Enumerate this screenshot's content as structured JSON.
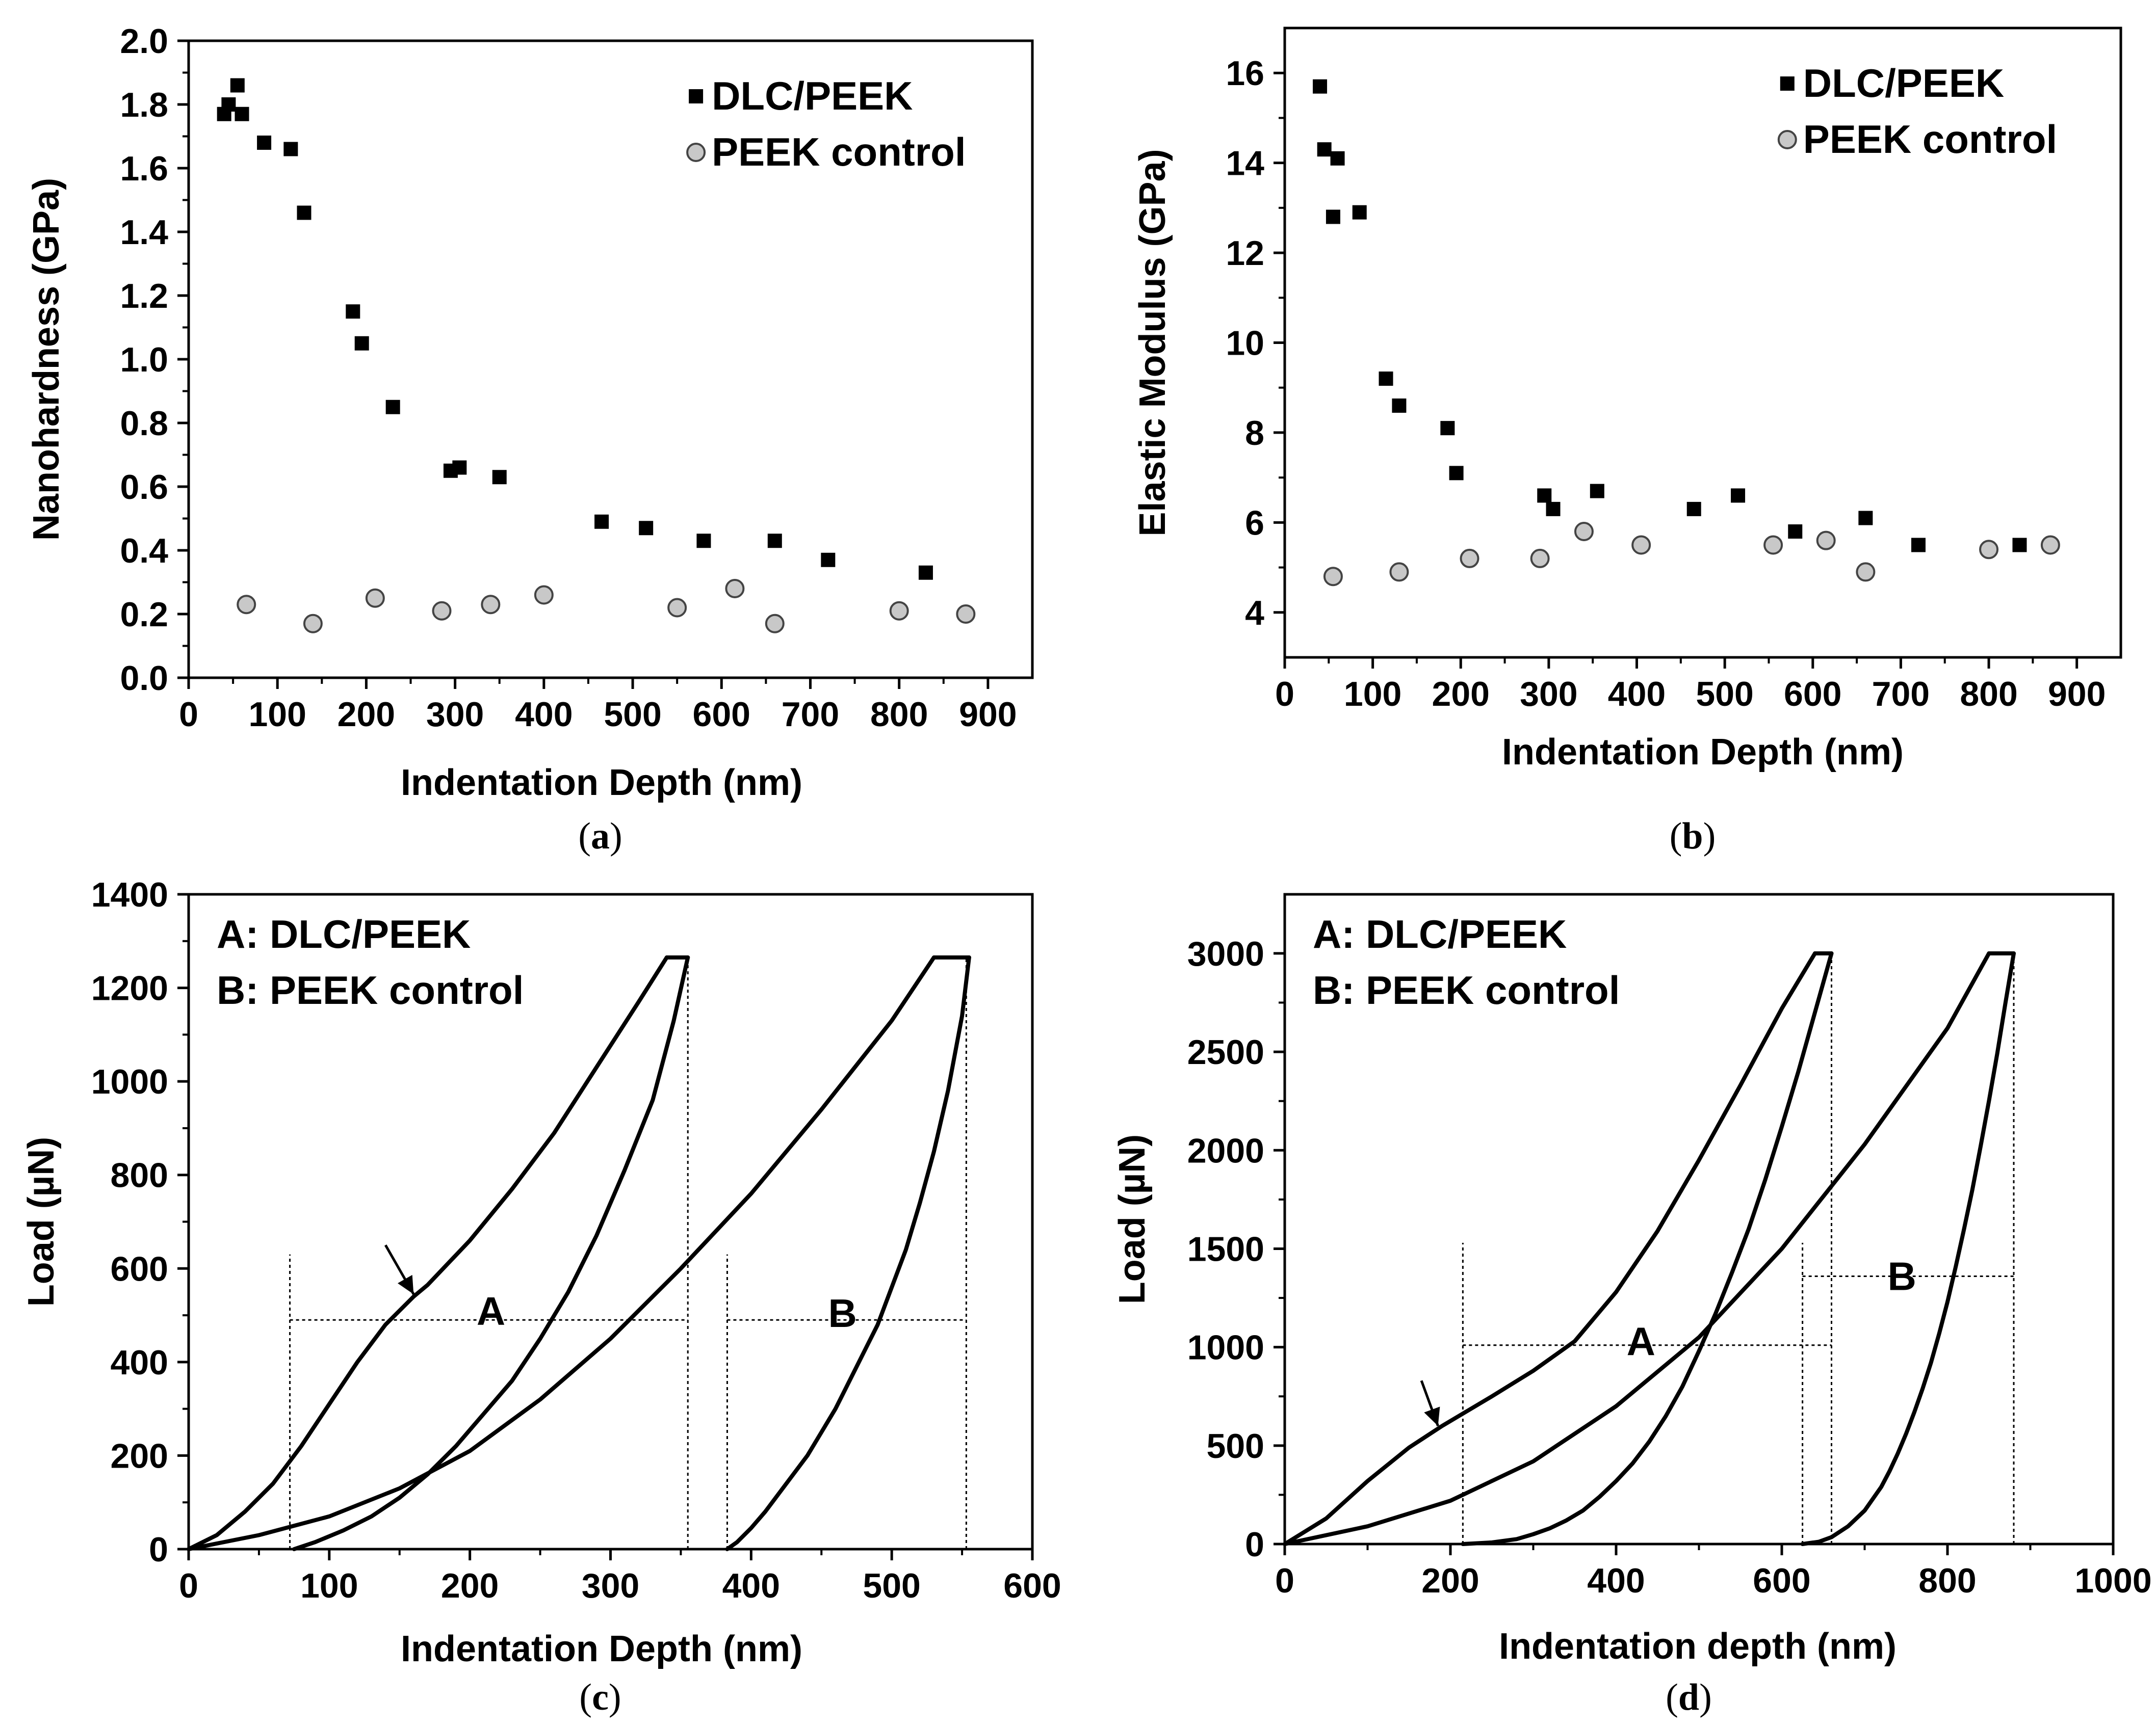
{
  "chart_data": [
    {
      "type": "scatter",
      "panel": "a",
      "caption_open": "(",
      "caption_letter": "a",
      "caption_close": ")",
      "xlabel": "Indentation Depth (nm)",
      "ylabel": "Nanohardness (GPa)",
      "xlim": [
        0,
        950
      ],
      "ylim": [
        0,
        2.0
      ],
      "xticks": [
        0,
        100,
        200,
        300,
        400,
        500,
        600,
        700,
        800,
        900
      ],
      "yticks": [
        0.0,
        0.2,
        0.4,
        0.6,
        0.8,
        1.0,
        1.2,
        1.4,
        1.6,
        1.8,
        2.0
      ],
      "ytick_labels": [
        "0.0",
        "0.2",
        "0.4",
        "0.6",
        "0.8",
        "1.0",
        "1.2",
        "1.4",
        "1.6",
        "1.8",
        "2.0"
      ],
      "legend": [
        "DLC/PEEK",
        "PEEK control"
      ],
      "series": [
        {
          "name": "DLC/PEEK",
          "marker": "square",
          "x": [
            40,
            45,
            55,
            60,
            85,
            115,
            130,
            185,
            195,
            230,
            295,
            305,
            350,
            465,
            515,
            580,
            660,
            720,
            830
          ],
          "y": [
            1.77,
            1.8,
            1.86,
            1.77,
            1.68,
            1.66,
            1.46,
            1.15,
            1.05,
            0.85,
            0.65,
            0.66,
            0.63,
            0.49,
            0.47,
            0.43,
            0.43,
            0.37,
            0.33
          ]
        },
        {
          "name": "PEEK control",
          "marker": "circle",
          "x": [
            65,
            140,
            210,
            285,
            340,
            400,
            550,
            615,
            660,
            800,
            875
          ],
          "y": [
            0.23,
            0.17,
            0.25,
            0.21,
            0.23,
            0.26,
            0.22,
            0.28,
            0.17,
            0.21,
            0.2
          ]
        }
      ]
    },
    {
      "type": "scatter",
      "panel": "b",
      "caption_open": "(",
      "caption_letter": "b",
      "caption_close": ")",
      "xlabel": "Indentation Depth (nm)",
      "ylabel": "Elastic Modulus (GPa)",
      "xlim": [
        0,
        950
      ],
      "ylim": [
        3,
        17
      ],
      "xticks": [
        0,
        100,
        200,
        300,
        400,
        500,
        600,
        700,
        800,
        900
      ],
      "yticks": [
        4,
        6,
        8,
        10,
        12,
        14,
        16
      ],
      "ytick_labels": [
        "4",
        "6",
        "8",
        "10",
        "12",
        "14",
        "16"
      ],
      "legend": [
        "DLC/PEEK",
        "PEEK control"
      ],
      "series": [
        {
          "name": "DLC/PEEK",
          "marker": "square",
          "x": [
            40,
            45,
            55,
            60,
            85,
            115,
            130,
            185,
            195,
            295,
            305,
            355,
            465,
            515,
            580,
            660,
            720,
            835
          ],
          "y": [
            15.7,
            14.3,
            12.8,
            14.1,
            12.9,
            9.2,
            8.6,
            8.1,
            7.1,
            6.6,
            6.3,
            6.7,
            6.3,
            6.6,
            5.8,
            6.1,
            5.5,
            5.5
          ]
        },
        {
          "name": "PEEK control",
          "marker": "circle",
          "x": [
            55,
            130,
            210,
            290,
            340,
            405,
            555,
            615,
            660,
            800,
            870
          ],
          "y": [
            4.8,
            4.9,
            5.2,
            5.2,
            5.8,
            5.5,
            5.5,
            5.6,
            4.9,
            5.4,
            5.5
          ]
        }
      ]
    },
    {
      "type": "line",
      "panel": "c",
      "caption_open": "(",
      "caption_letter": "c",
      "caption_close": ")",
      "xlabel": "Indentation Depth (nm)",
      "ylabel": "Load (µN)",
      "xlim": [
        0,
        600
      ],
      "ylim": [
        0,
        1400
      ],
      "xticks": [
        0,
        100,
        200,
        300,
        400,
        500,
        600
      ],
      "yticks": [
        0,
        200,
        400,
        600,
        800,
        1000,
        1200,
        1400
      ],
      "legend_lines": [
        "A: DLC/PEEK",
        "B: PEEK control"
      ],
      "labels": [
        "A",
        "B"
      ],
      "series": [
        {
          "name": "A loading",
          "x": [
            0,
            20,
            40,
            60,
            80,
            100,
            120,
            140,
            160,
            170,
            200,
            230,
            260,
            290,
            320,
            340
          ],
          "y": [
            0,
            30,
            80,
            140,
            220,
            310,
            400,
            480,
            540,
            565,
            660,
            770,
            890,
            1030,
            1170,
            1265
          ]
        },
        {
          "name": "A hold",
          "x": [
            340,
            355
          ],
          "y": [
            1265,
            1265
          ]
        },
        {
          "name": "A unloading",
          "x": [
            355,
            345,
            330,
            310,
            290,
            270,
            250,
            230,
            210,
            190,
            170,
            150,
            130,
            110,
            90,
            75
          ],
          "y": [
            1265,
            1130,
            960,
            810,
            670,
            550,
            450,
            360,
            290,
            220,
            160,
            110,
            70,
            40,
            15,
            0
          ]
        },
        {
          "name": "B loading",
          "x": [
            0,
            50,
            100,
            150,
            200,
            250,
            300,
            350,
            400,
            450,
            500,
            530
          ],
          "y": [
            0,
            30,
            70,
            130,
            210,
            320,
            450,
            600,
            760,
            940,
            1130,
            1265
          ]
        },
        {
          "name": "B hold",
          "x": [
            530,
            555
          ],
          "y": [
            1265,
            1265
          ]
        },
        {
          "name": "B unloading",
          "x": [
            555,
            550,
            540,
            530,
            520,
            510,
            500,
            490,
            480,
            470,
            460,
            450,
            440,
            430,
            420,
            410,
            400,
            390,
            383
          ],
          "y": [
            1265,
            1140,
            980,
            850,
            740,
            640,
            560,
            480,
            420,
            360,
            300,
            250,
            200,
            160,
            120,
            80,
            45,
            15,
            0
          ]
        }
      ],
      "guides": [
        {
          "name": "A lower bound",
          "type": "vline",
          "x": 72,
          "y0": 0,
          "y1": 630
        },
        {
          "name": "A upper bound",
          "type": "vline",
          "x": 355,
          "y0": 0,
          "y1": 1265
        },
        {
          "name": "A width",
          "type": "hline",
          "y": 490,
          "x0": 72,
          "x1": 355
        },
        {
          "name": "B lower bound",
          "type": "vline",
          "x": 383,
          "y0": 0,
          "y1": 630
        },
        {
          "name": "B upper bound",
          "type": "vline",
          "x": 553,
          "y0": 0,
          "y1": 1265
        },
        {
          "name": "B width",
          "type": "hline",
          "y": 490,
          "x0": 383,
          "x1": 553
        }
      ],
      "label_positions": [
        {
          "text_index": 0,
          "x": 215,
          "y": 480
        },
        {
          "text_index": 1,
          "x": 465,
          "y": 475
        }
      ],
      "arrow": {
        "from": [
          140,
          650
        ],
        "to": [
          160,
          545
        ]
      }
    },
    {
      "type": "line",
      "panel": "d",
      "caption_open": "(",
      "caption_letter": "d",
      "caption_close": ")",
      "xlabel": "Indentation depth (nm)",
      "ylabel": "Load (µN)",
      "xlim": [
        0,
        1000
      ],
      "ylim": [
        0,
        3300
      ],
      "xticks": [
        0,
        200,
        400,
        600,
        800,
        1000
      ],
      "yticks": [
        0,
        500,
        1000,
        1500,
        2000,
        2500,
        3000
      ],
      "legend_lines": [
        "A: DLC/PEEK",
        "B: PEEK control"
      ],
      "labels": [
        "A",
        "B"
      ],
      "series": [
        {
          "name": "A loading",
          "x": [
            0,
            50,
            100,
            150,
            190,
            250,
            300,
            350,
            400,
            450,
            500,
            550,
            600,
            640
          ],
          "y": [
            0,
            130,
            320,
            490,
            600,
            750,
            880,
            1030,
            1280,
            1590,
            1950,
            2330,
            2720,
            3000
          ]
        },
        {
          "name": "A hold",
          "x": [
            640,
            660
          ],
          "y": [
            3000,
            3000
          ]
        },
        {
          "name": "A unloading",
          "x": [
            660,
            640,
            620,
            600,
            580,
            560,
            540,
            520,
            500,
            480,
            460,
            440,
            420,
            400,
            380,
            360,
            340,
            320,
            300,
            280,
            250,
            215
          ],
          "y": [
            3000,
            2700,
            2400,
            2120,
            1850,
            1600,
            1380,
            1170,
            980,
            800,
            650,
            520,
            410,
            320,
            240,
            170,
            120,
            80,
            50,
            25,
            8,
            0
          ]
        },
        {
          "name": "B loading",
          "x": [
            0,
            100,
            200,
            300,
            400,
            500,
            600,
            700,
            800,
            850
          ],
          "y": [
            0,
            90,
            220,
            420,
            700,
            1050,
            1500,
            2030,
            2620,
            3000
          ]
        },
        {
          "name": "B hold",
          "x": [
            850,
            880
          ],
          "y": [
            3000,
            3000
          ]
        },
        {
          "name": "B unloading",
          "x": [
            880,
            870,
            860,
            850,
            840,
            830,
            820,
            810,
            800,
            790,
            780,
            770,
            760,
            750,
            740,
            730,
            720,
            700,
            680,
            660,
            645,
            625
          ],
          "y": [
            3000,
            2750,
            2490,
            2250,
            2020,
            1800,
            1600,
            1410,
            1230,
            1070,
            920,
            790,
            670,
            560,
            460,
            370,
            290,
            170,
            90,
            35,
            12,
            0
          ]
        }
      ],
      "guides": [
        {
          "name": "A lower bound",
          "type": "vline",
          "x": 215,
          "y0": 0,
          "y1": 1530
        },
        {
          "name": "A upper bound",
          "type": "vline",
          "x": 660,
          "y0": 0,
          "y1": 3000
        },
        {
          "name": "A width",
          "type": "hline",
          "y": 1010,
          "x0": 215,
          "x1": 660
        },
        {
          "name": "B lower bound",
          "type": "vline",
          "x": 625,
          "y0": 0,
          "y1": 1530
        },
        {
          "name": "B upper bound",
          "type": "vline",
          "x": 880,
          "y0": 0,
          "y1": 3000
        },
        {
          "name": "B width",
          "type": "hline",
          "y": 1360,
          "x0": 625,
          "x1": 880
        }
      ],
      "label_positions": [
        {
          "text_index": 0,
          "x": 430,
          "y": 960
        },
        {
          "text_index": 1,
          "x": 745,
          "y": 1290
        }
      ],
      "arrow": {
        "from": [
          165,
          830
        ],
        "to": [
          185,
          600
        ]
      }
    }
  ]
}
